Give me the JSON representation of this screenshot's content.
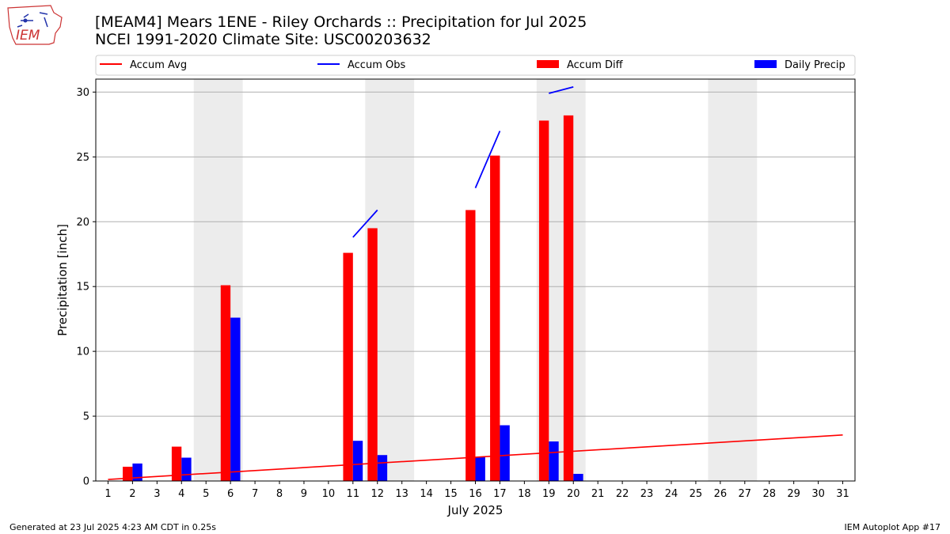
{
  "header": {
    "title_line1": "[MEAM4] Mears 1ENE - Riley Orchards :: Precipitation for Jul 2025",
    "title_line2": "NCEI 1991-2020 Climate Site: USC00203632",
    "logo_text": "IEM"
  },
  "footer": {
    "generated": "Generated at 23 Jul 2025 4:23 AM CDT in 0.25s",
    "app": "IEM Autoplot App #17"
  },
  "colors": {
    "accum_avg": "#ff0000",
    "accum_obs": "#0000ff",
    "accum_diff": "#ff0000",
    "daily_precip": "#0000ff",
    "weekend_shade": "#ececec",
    "grid": "#b0b0b0"
  },
  "chart_data": {
    "type": "bar",
    "title": "[MEAM4] Mears 1ENE - Riley Orchards :: Precipitation for Jul 2025",
    "xlabel": "July 2025",
    "ylabel": "Precipitation [inch]",
    "ylim": [
      0,
      31
    ],
    "yticks": [
      0,
      5,
      10,
      15,
      20,
      25,
      30
    ],
    "xlim": [
      0.5,
      31.5
    ],
    "days": [
      1,
      2,
      3,
      4,
      5,
      6,
      7,
      8,
      9,
      10,
      11,
      12,
      13,
      14,
      15,
      16,
      17,
      18,
      19,
      20,
      21,
      22,
      23,
      24,
      25,
      26,
      27,
      28,
      29,
      30,
      31
    ],
    "grid": "horizontal",
    "legend_placement": "top",
    "legend": [
      "Accum Avg",
      "Accum Obs",
      "Accum Diff",
      "Daily Precip"
    ],
    "shaded_weekends": [
      [
        5,
        6
      ],
      [
        12,
        13
      ],
      [
        19,
        20
      ],
      [
        26,
        27
      ]
    ],
    "accum_avg": {
      "name": "Accum Avg",
      "start": [
        1,
        0.12
      ],
      "end": [
        31,
        3.55
      ]
    },
    "accum_obs_segments": [
      {
        "name": "Accum Obs",
        "x": [
          11,
          12
        ],
        "y": [
          18.8,
          20.9
        ]
      },
      {
        "name": "Accum Obs",
        "x": [
          16,
          17
        ],
        "y": [
          22.6,
          27.0
        ]
      },
      {
        "name": "Accum Obs",
        "x": [
          19,
          20
        ],
        "y": [
          29.9,
          30.4
        ]
      }
    ],
    "accum_diff": {
      "name": "Accum Diff",
      "days": [
        2,
        4,
        6,
        11,
        12,
        16,
        17,
        19,
        20
      ],
      "values": [
        1.1,
        2.65,
        15.1,
        17.6,
        19.5,
        20.9,
        25.1,
        27.8,
        28.2
      ]
    },
    "daily_precip": {
      "name": "Daily Precip",
      "days": [
        2,
        4,
        6,
        11,
        12,
        16,
        17,
        19,
        20
      ],
      "values": [
        1.35,
        1.8,
        12.6,
        3.1,
        2.0,
        1.85,
        4.3,
        3.05,
        0.55
      ]
    }
  }
}
